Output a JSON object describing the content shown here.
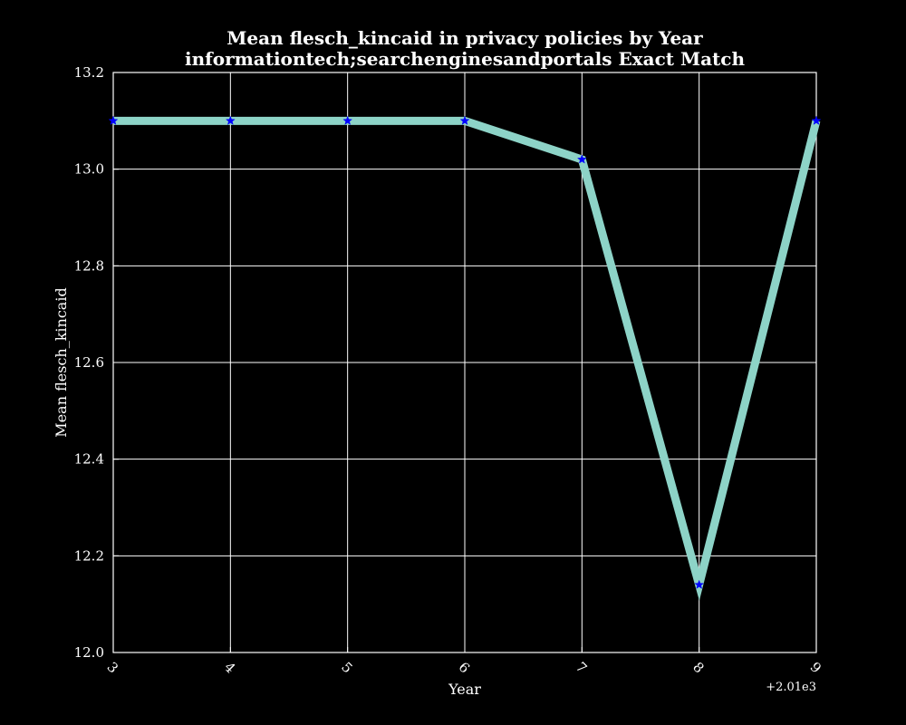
{
  "chart_data": {
    "type": "line",
    "title": "Mean flesch_kincaid in privacy policies by Year",
    "subtitle": "informationtech;searchenginesandportals Exact Match",
    "xlabel": "Year",
    "ylabel": "Mean flesch_kincaid",
    "x_tick_labels": [
      "3",
      "4",
      "5",
      "6",
      "7",
      "8",
      "9"
    ],
    "x_offset_label": "+2.01e3",
    "y_tick_labels": [
      "12.0",
      "12.2",
      "12.4",
      "12.6",
      "12.8",
      "13.0",
      "13.2"
    ],
    "xlim": [
      2013,
      2019
    ],
    "ylim": [
      12.0,
      13.2
    ],
    "grid": true,
    "colors": {
      "background": "#000000",
      "line": "#8dd3c7",
      "marker": "#0000ff",
      "grid": "#ffffff",
      "text": "#ffffff"
    },
    "series": [
      {
        "x": [
          2013,
          2014,
          2015,
          2016,
          2017,
          2018,
          2019
        ],
        "y": [
          13.1,
          13.1,
          13.1,
          13.1,
          13.02,
          12.14,
          13.1
        ],
        "marker": "star"
      }
    ]
  }
}
